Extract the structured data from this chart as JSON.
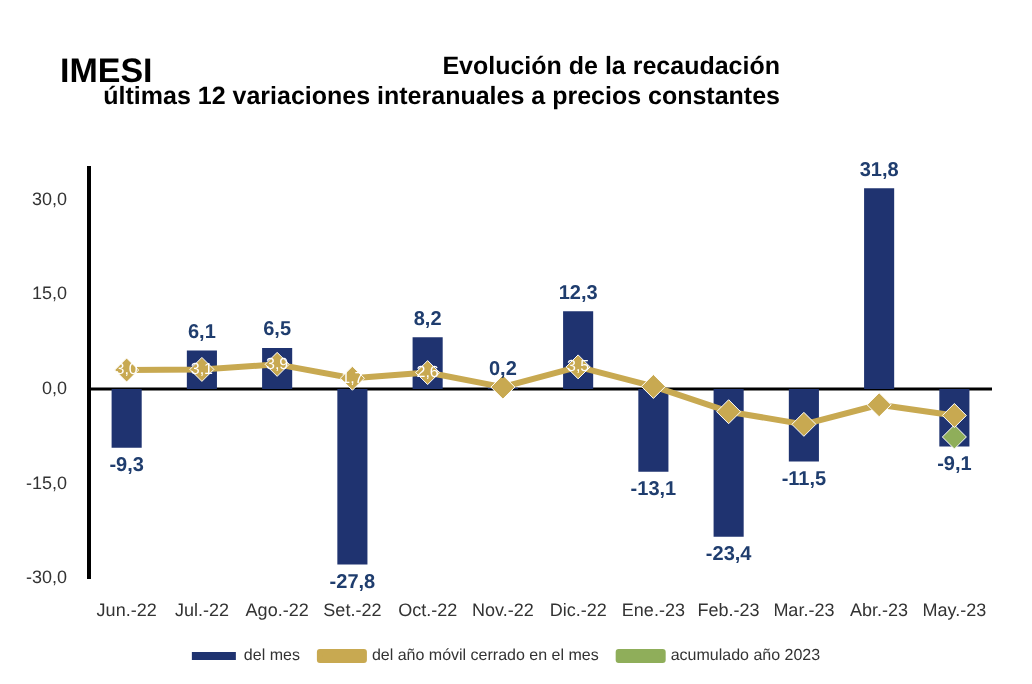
{
  "chart_data": {
    "type": "bar",
    "title": "IMESI",
    "subtitle": "Evolución de la recaudación\núltimas 12 variaciones interanuales a precios constantes",
    "categories": [
      "Jun.-22",
      "Jul.-22",
      "Ago.-22",
      "Set.-22",
      "Oct.-22",
      "Nov.-22",
      "Dic.-22",
      "Ene.-23",
      "Feb.-23",
      "Mar.-23",
      "Abr.-23",
      "May.-23"
    ],
    "series": [
      {
        "name": "del mes",
        "color": "#1f3370",
        "values": [
          -9.3,
          6.1,
          6.5,
          -27.8,
          8.2,
          0.2,
          12.3,
          -13.1,
          -23.4,
          -11.5,
          31.8,
          -9.1
        ],
        "value_labels": [
          "-9,3",
          "6,1",
          "6,5",
          "-27,8",
          "8,2",
          "0,2",
          "12,3",
          "-13,1",
          "-23,4",
          "-11,5",
          "31,8",
          "-9,1"
        ]
      },
      {
        "name": "del año móvil cerrado en el mes",
        "type": "line",
        "color": "#c8a951",
        "marker": "diamond",
        "values": [
          3.0,
          3.1,
          3.9,
          1.7,
          2.6,
          0.3,
          3.5,
          0.4,
          -3.6,
          -5.6,
          -2.5,
          -4.2
        ],
        "value_labels": [
          "3,0",
          "3,1",
          "3,9",
          "1,7",
          "2,6",
          null,
          "3,5",
          null,
          null,
          null,
          null,
          null
        ]
      },
      {
        "name": "acumulado año 2023",
        "type": "line",
        "color": "#8fae5a",
        "marker": "diamond",
        "values": [
          null,
          null,
          null,
          null,
          null,
          null,
          null,
          null,
          null,
          null,
          null,
          -7.6
        ]
      }
    ],
    "ylim": [
      -30,
      35
    ],
    "yticks": [
      {
        "value": -30,
        "label": "-30,0"
      },
      {
        "value": -15,
        "label": "-15,0"
      },
      {
        "value": 0,
        "label": "0,0"
      },
      {
        "value": 15,
        "label": "15,0"
      },
      {
        "value": 30,
        "label": "30,0"
      }
    ],
    "ref_lines": [
      {
        "axis": "y",
        "value": 0,
        "color": "#000000"
      }
    ],
    "grid": false,
    "legend": "bottom"
  }
}
